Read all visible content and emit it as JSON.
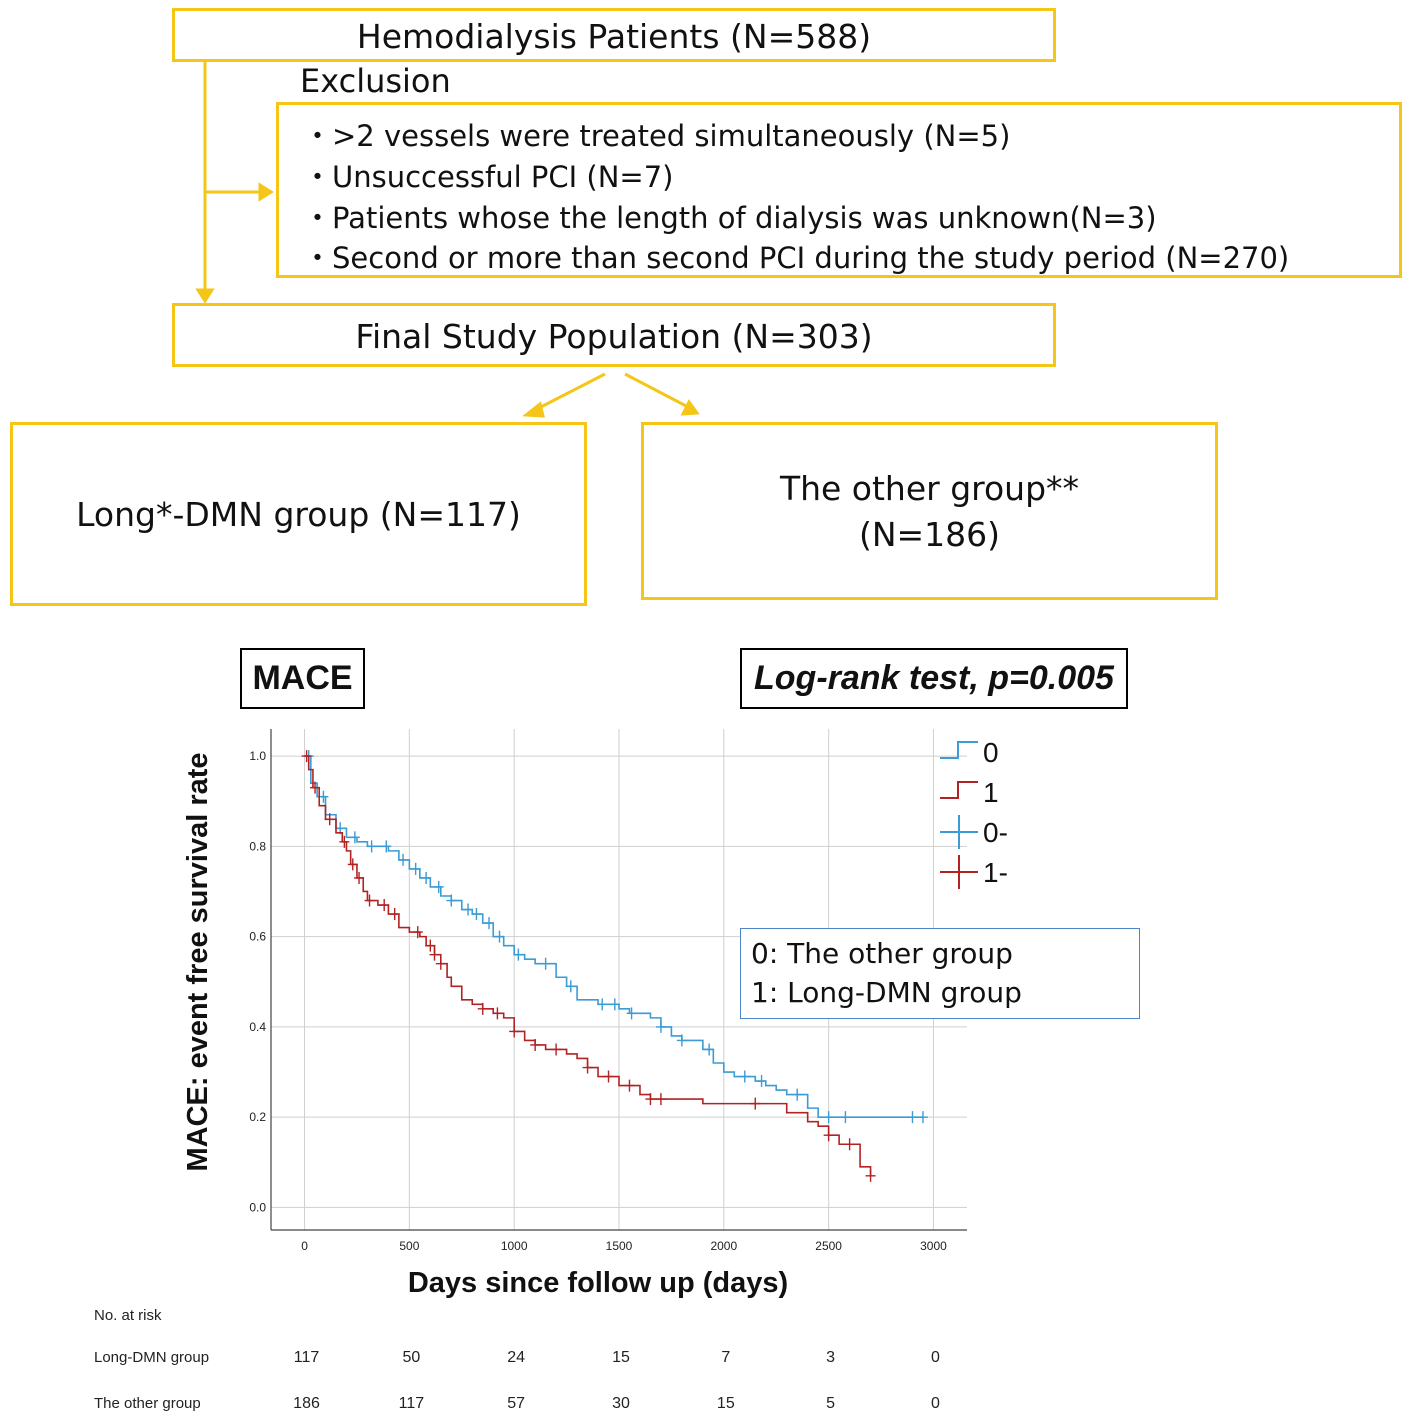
{
  "flow": {
    "top_box": "Hemodialysis Patients (N=588)",
    "exclusion_title": "Exclusion",
    "exclusions": [
      "・>2 vessels were treated simultaneously (N=5)",
      "・Unsuccessful PCI  (N=7)",
      "・Patients whose the length of dialysis was unknown(N=3)",
      "・Second or more than second PCI during the study period (N=270)"
    ],
    "final_box": "Final Study Population (N=303)",
    "left_group": "Long*-DMN group (N=117)",
    "right_group_line1": "The other group**",
    "right_group_line2": "(N=186)",
    "box_color": "#f5c518"
  },
  "chart_labels": {
    "mace_tag": "MACE",
    "logrank_tag": "Log-rank test, p=0.005",
    "legend_note_0": "0: The other group",
    "legend_note_1": "1: Long-DMN group"
  },
  "chart_data": {
    "type": "line",
    "subtype": "kaplan-meier step",
    "xlabel": "Days since follow up (days)",
    "ylabel": "MACE: event free survival rate",
    "xlim": [
      -160,
      3160
    ],
    "ylim": [
      -0.05,
      1.06
    ],
    "x_ticks": [
      "0",
      "500",
      "1000",
      "1500",
      "2000",
      "2500",
      "3000"
    ],
    "y_ticks": [
      "0.0",
      "0.2",
      "0.4",
      "0.6",
      "0.8",
      "1.0"
    ],
    "grid": true,
    "legend_position": "top-right",
    "legend": [
      "0",
      "1",
      "0-",
      "1-"
    ],
    "colors": {
      "0": "#3a9bd5",
      "1": "#b22222"
    },
    "series": [
      {
        "name": "0",
        "color": "#3a9bd5",
        "x": [
          0,
          30,
          60,
          100,
          150,
          200,
          250,
          300,
          400,
          450,
          500,
          550,
          600,
          650,
          700,
          750,
          800,
          850,
          900,
          950,
          1000,
          1050,
          1100,
          1200,
          1250,
          1300,
          1400,
          1500,
          1550,
          1650,
          1700,
          1750,
          1800,
          1900,
          1950,
          2000,
          2050,
          2150,
          2200,
          2250,
          2300,
          2350,
          2400,
          2450,
          2950
        ],
        "y": [
          1.0,
          0.94,
          0.91,
          0.87,
          0.84,
          0.82,
          0.81,
          0.8,
          0.79,
          0.77,
          0.75,
          0.73,
          0.71,
          0.69,
          0.68,
          0.66,
          0.65,
          0.63,
          0.6,
          0.58,
          0.56,
          0.55,
          0.54,
          0.51,
          0.49,
          0.46,
          0.45,
          0.44,
          0.43,
          0.42,
          0.4,
          0.38,
          0.37,
          0.35,
          0.32,
          0.3,
          0.29,
          0.28,
          0.27,
          0.26,
          0.25,
          0.25,
          0.22,
          0.2,
          0.2
        ],
        "censored": [
          20,
          90,
          170,
          240,
          320,
          390,
          470,
          530,
          580,
          640,
          700,
          780,
          820,
          880,
          930,
          1020,
          1150,
          1270,
          1420,
          1480,
          1560,
          1700,
          1800,
          1930,
          2100,
          2180,
          2350,
          2500,
          2580,
          2900,
          2950
        ]
      },
      {
        "name": "1",
        "color": "#b22222",
        "x": [
          0,
          20,
          40,
          70,
          100,
          150,
          180,
          200,
          220,
          250,
          280,
          300,
          350,
          400,
          450,
          500,
          550,
          580,
          620,
          650,
          680,
          700,
          750,
          800,
          850,
          900,
          950,
          1000,
          1050,
          1100,
          1150,
          1250,
          1300,
          1350,
          1400,
          1500,
          1600,
          1650,
          1900,
          2300,
          2400,
          2450,
          2500,
          2550,
          2650,
          2700
        ],
        "y": [
          1.0,
          0.97,
          0.93,
          0.89,
          0.86,
          0.83,
          0.81,
          0.79,
          0.76,
          0.73,
          0.7,
          0.68,
          0.67,
          0.65,
          0.62,
          0.61,
          0.6,
          0.58,
          0.56,
          0.54,
          0.51,
          0.49,
          0.46,
          0.45,
          0.44,
          0.43,
          0.42,
          0.39,
          0.37,
          0.36,
          0.35,
          0.34,
          0.33,
          0.31,
          0.29,
          0.27,
          0.25,
          0.24,
          0.23,
          0.21,
          0.19,
          0.18,
          0.16,
          0.14,
          0.09,
          0.07
        ],
        "censored": [
          10,
          50,
          120,
          190,
          230,
          260,
          310,
          380,
          430,
          540,
          600,
          620,
          650,
          850,
          920,
          1000,
          1100,
          1200,
          1350,
          1450,
          1550,
          1650,
          1700,
          2150,
          2500,
          2600,
          2700
        ]
      }
    ]
  },
  "risk_table": {
    "title": "No. at risk",
    "columns_x": [
      0,
      500,
      1000,
      1500,
      2000,
      2500,
      3000
    ],
    "rows": [
      {
        "label": "Long-DMN group",
        "values": [
          "117",
          "50",
          "24",
          "15",
          "7",
          "3",
          "0"
        ]
      },
      {
        "label": "The other group",
        "values": [
          "186",
          "117",
          "57",
          "30",
          "15",
          "5",
          "0"
        ]
      }
    ]
  }
}
